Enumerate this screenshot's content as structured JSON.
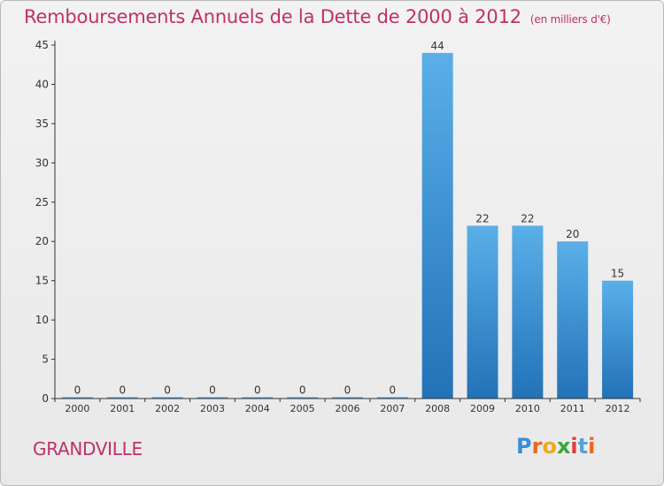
{
  "header": {
    "title": "Remboursements Annuels de la Dette de 2000 à 2012",
    "subtitle": "(en milliers d'€)"
  },
  "footer": {
    "city": "GRANDVILLE",
    "logo_letters": [
      "P",
      "r",
      "o",
      "x",
      "i",
      "t",
      "i"
    ],
    "logo_colors": [
      "#3a8ed8",
      "#e8671e",
      "#f2a81d",
      "#3aa63a",
      "#e23b3b",
      "#5b9fd8",
      "#e8671e"
    ]
  },
  "colors": {
    "bar_top": "#5aafe8",
    "bar_bottom": "#2272b8",
    "axis": "#333333",
    "title": "#c0306a"
  },
  "chart_data": {
    "type": "bar",
    "categories": [
      "2000",
      "2001",
      "2002",
      "2003",
      "2004",
      "2005",
      "2006",
      "2007",
      "2008",
      "2009",
      "2010",
      "2011",
      "2012"
    ],
    "values": [
      0,
      0,
      0,
      0,
      0,
      0,
      0,
      0,
      44,
      22,
      22,
      20,
      15
    ],
    "data_labels": [
      "0",
      "0",
      "0",
      "0",
      "0",
      "0",
      "0",
      "0",
      "44",
      "22",
      "22",
      "20",
      "15"
    ],
    "ylim": [
      0,
      45
    ],
    "yticks": [
      0,
      5,
      10,
      15,
      20,
      25,
      30,
      35,
      40,
      45
    ],
    "grid": false,
    "xlabel": "",
    "ylabel": ""
  }
}
